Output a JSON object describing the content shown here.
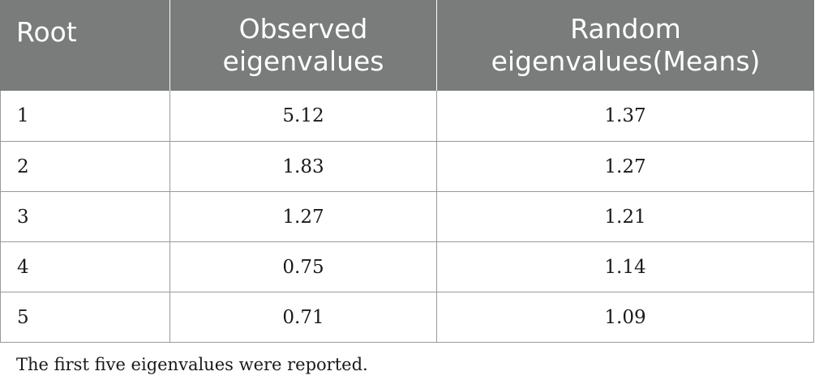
{
  "table": {
    "headers": [
      "Root",
      "Observed\neigenvalues",
      "Random\neigenvalues(Means)"
    ],
    "rows": [
      [
        "1",
        "5.12",
        "1.37"
      ],
      [
        "2",
        "1.83",
        "1.27"
      ],
      [
        "3",
        "1.27",
        "1.21"
      ],
      [
        "4",
        "0.75",
        "1.14"
      ],
      [
        "5",
        "0.71",
        "1.09"
      ]
    ]
  },
  "footnote": "The first five eigenvalues were reported."
}
